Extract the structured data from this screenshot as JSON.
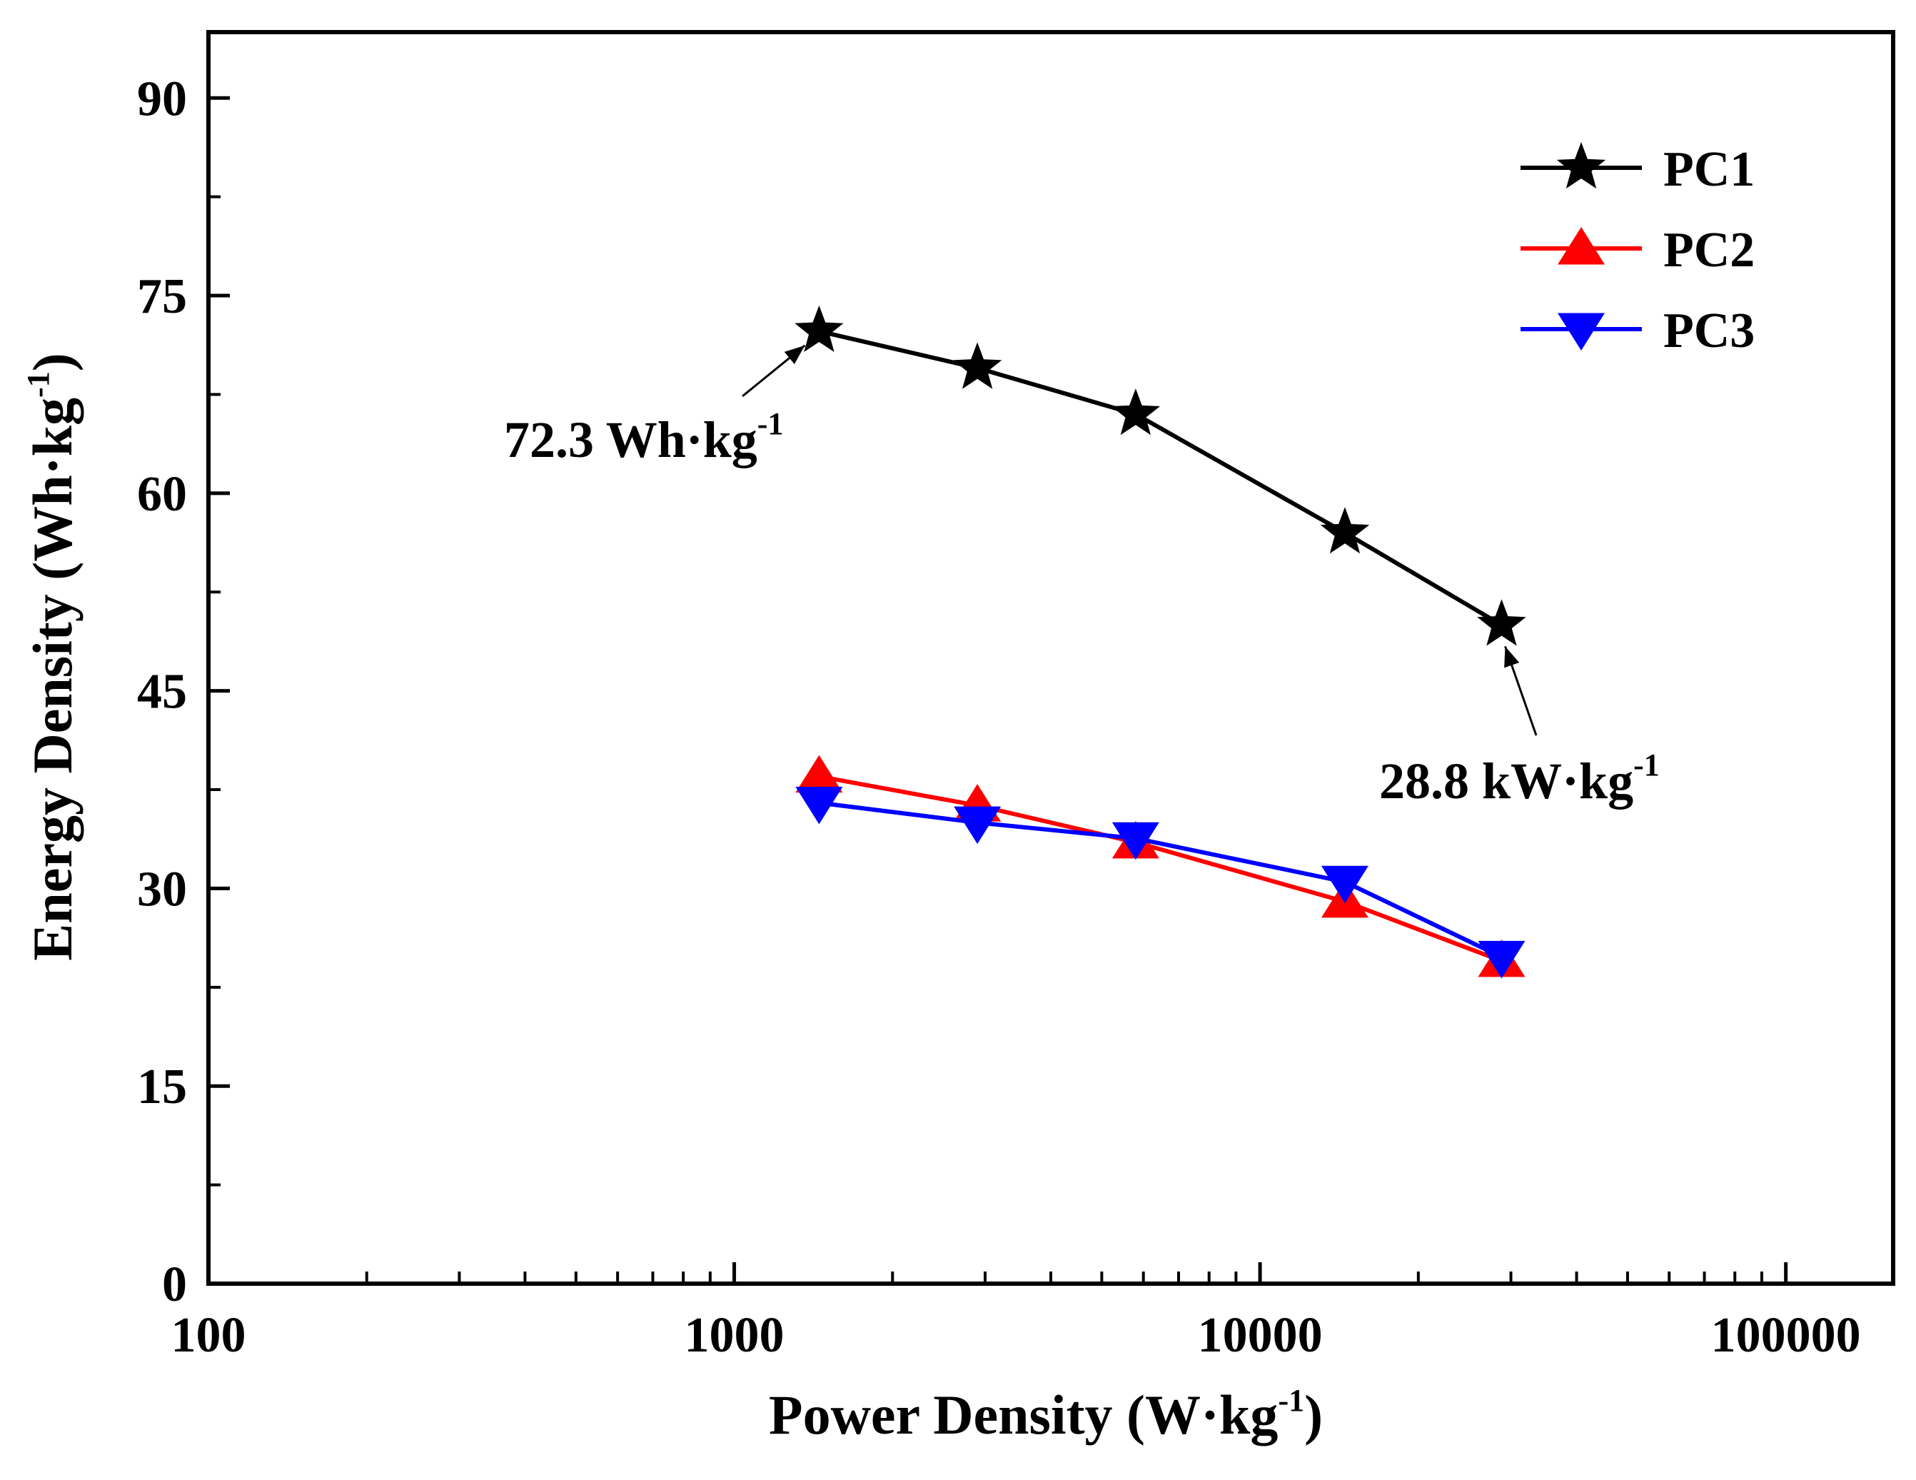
{
  "chart_data": {
    "type": "line",
    "xscale": "log",
    "xlim": [
      100,
      160000
    ],
    "ylim": [
      0,
      95
    ],
    "x_ticks": [
      "100",
      "1000",
      "10000",
      "100000"
    ],
    "y_ticks": [
      "0",
      "15",
      "30",
      "45",
      "60",
      "75",
      "90"
    ],
    "xlabel": {
      "main": "Power Density (W·kg",
      "sup": "-1",
      "close": ")"
    },
    "ylabel": {
      "main": "Energy Density (Wh·kg",
      "sup": "-1",
      "close": ")"
    },
    "x": [
      1450,
      2900,
      5800,
      14500,
      28800
    ],
    "series": [
      {
        "name": "PC1",
        "color": "#000000",
        "marker": "star",
        "values": [
          72.3,
          69.5,
          66.0,
          57.0,
          50.0
        ]
      },
      {
        "name": "PC2",
        "color": "#ff0000",
        "marker": "triangle-up",
        "values": [
          38.5,
          36.3,
          33.5,
          29.0,
          24.5
        ]
      },
      {
        "name": "PC3",
        "color": "#0000ff",
        "marker": "triangle-down",
        "values": [
          36.5,
          35.0,
          33.8,
          30.5,
          24.8
        ]
      }
    ],
    "annotations": [
      {
        "main": "72.3 Wh·kg",
        "sup": "-1",
        "target_x": 1450,
        "target_y": 72.3
      },
      {
        "main": "28.8 kW·kg",
        "sup": "-1",
        "target_x": 28800,
        "target_y": 50.0
      }
    ],
    "legend_position": "top-right"
  }
}
